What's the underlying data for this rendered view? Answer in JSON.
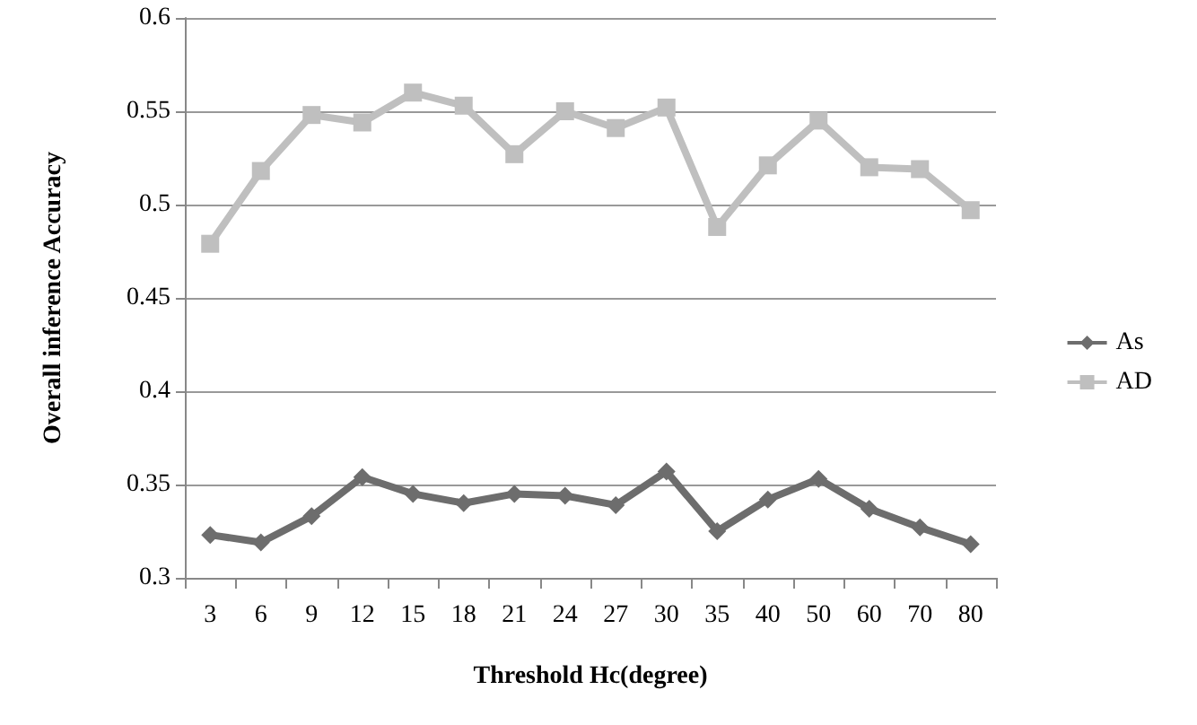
{
  "chart_data": {
    "type": "line",
    "xlabel": "Threshold Hc(degree)",
    "ylabel": "Overall inference Accuracy",
    "categories": [
      "3",
      "6",
      "9",
      "12",
      "15",
      "18",
      "21",
      "24",
      "27",
      "30",
      "35",
      "40",
      "50",
      "60",
      "70",
      "80"
    ],
    "series": [
      {
        "name": "As",
        "color": "#6d6d6d",
        "marker": "diamond",
        "values": [
          0.323,
          0.319,
          0.333,
          0.354,
          0.345,
          0.34,
          0.345,
          0.344,
          0.339,
          0.357,
          0.325,
          0.342,
          0.353,
          0.337,
          0.327,
          0.318
        ]
      },
      {
        "name": "AD",
        "color": "#bfbfbf",
        "marker": "square",
        "values": [
          0.479,
          0.518,
          0.548,
          0.544,
          0.56,
          0.553,
          0.527,
          0.55,
          0.541,
          0.552,
          0.488,
          0.521,
          0.545,
          0.52,
          0.519,
          0.497
        ]
      }
    ],
    "ylim": [
      0.3,
      0.6
    ],
    "yticks": [
      0.3,
      0.35,
      0.4,
      0.45,
      0.5,
      0.55,
      0.6
    ],
    "grid": "y",
    "legend": "right"
  }
}
